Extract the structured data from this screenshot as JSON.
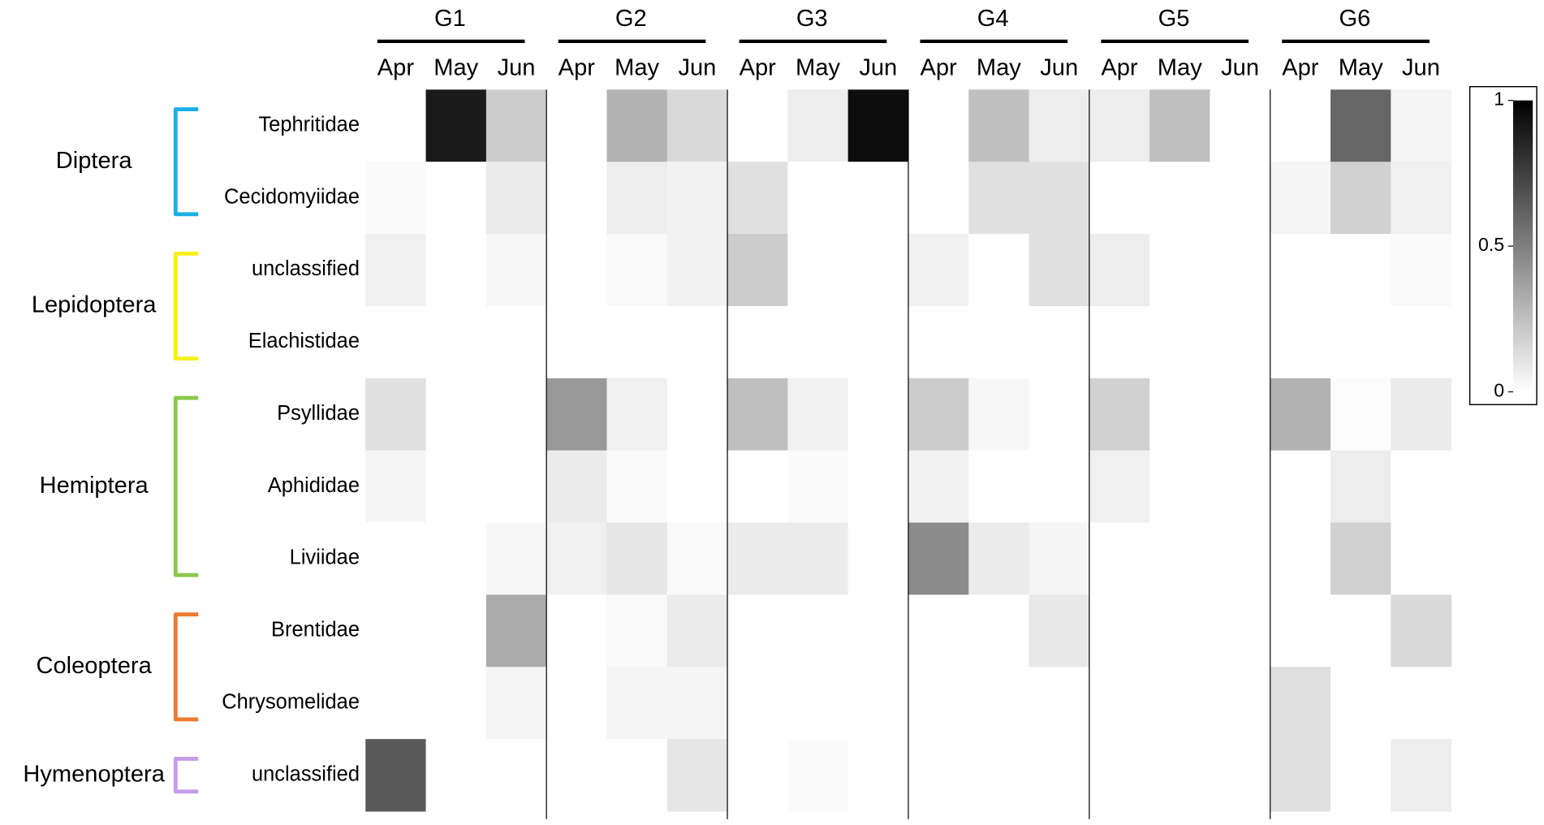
{
  "chart_data": {
    "type": "heatmap",
    "groups": [
      {
        "name": "G1",
        "months": [
          "Apr",
          "May",
          "Jun"
        ]
      },
      {
        "name": "G2",
        "months": [
          "Apr",
          "May",
          "Jun"
        ]
      },
      {
        "name": "G3",
        "months": [
          "Apr",
          "May",
          "Jun"
        ]
      },
      {
        "name": "G4",
        "months": [
          "Apr",
          "May",
          "Jun"
        ]
      },
      {
        "name": "G5",
        "months": [
          "Apr",
          "May",
          "Jun"
        ]
      },
      {
        "name": "G6",
        "months": [
          "Apr",
          "May",
          "Jun"
        ]
      }
    ],
    "orders": [
      {
        "name": "Diptera",
        "color": "#1aafe6",
        "families": [
          {
            "name": "Tephritidae",
            "values": [
              0,
              0.9,
              0.2,
              0,
              0.3,
              0.15,
              0,
              0.07,
              0.95,
              0,
              0.25,
              0.07,
              0.07,
              0.25,
              0,
              0,
              0.6,
              0.04
            ]
          },
          {
            "name": "Cecidomyiidae",
            "values": [
              0.02,
              0,
              0.08,
              0,
              0.07,
              0.05,
              0.12,
              0,
              0,
              0,
              0.12,
              0.12,
              0,
              0,
              0,
              0.04,
              0.18,
              0.06
            ]
          }
        ]
      },
      {
        "name": "Lepidoptera",
        "color": "#f5f019",
        "families": [
          {
            "name": "unclassified",
            "values": [
              0.06,
              0,
              0.03,
              0,
              0.02,
              0.05,
              0.2,
              0,
              0,
              0.06,
              0,
              0.12,
              0.07,
              0,
              0,
              0,
              0,
              0.02
            ]
          },
          {
            "name": "Elachistidae",
            "values": [
              0,
              0,
              0,
              0,
              0,
              0,
              0,
              0,
              0,
              0,
              0,
              0,
              0,
              0,
              0,
              0,
              0,
              0
            ]
          }
        ]
      },
      {
        "name": "Hemiptera",
        "color": "#8cc84b",
        "families": [
          {
            "name": "Psyllidae",
            "values": [
              0.12,
              0,
              0,
              0.4,
              0.06,
              0,
              0.25,
              0.05,
              0,
              0.2,
              0.03,
              0,
              0.18,
              0,
              0,
              0.3,
              0.01,
              0.08
            ]
          },
          {
            "name": "Aphididae",
            "values": [
              0.04,
              0,
              0,
              0.08,
              0.02,
              0,
              0,
              0.02,
              0,
              0.05,
              0,
              0,
              0.06,
              0,
              0,
              0,
              0.07,
              0
            ]
          },
          {
            "name": "Liviidae",
            "values": [
              0,
              0,
              0.03,
              0.06,
              0.1,
              0.02,
              0.08,
              0.08,
              0,
              0.45,
              0.08,
              0.04,
              0,
              0,
              0,
              0,
              0.18,
              0
            ]
          }
        ]
      },
      {
        "name": "Coleoptera",
        "color": "#ec7a30",
        "families": [
          {
            "name": "Brentidae",
            "values": [
              0,
              0,
              0.33,
              0,
              0.02,
              0.08,
              0,
              0,
              0,
              0,
              0,
              0.09,
              0,
              0,
              0,
              0,
              0,
              0.15
            ]
          },
          {
            "name": "Chrysomelidae",
            "values": [
              0,
              0,
              0.04,
              0,
              0.04,
              0.04,
              0,
              0,
              0,
              0,
              0,
              0,
              0,
              0,
              0,
              0.12,
              0,
              0
            ]
          }
        ]
      },
      {
        "name": "Hymenoptera",
        "color": "#c79be8",
        "families": [
          {
            "name": "unclassified",
            "values": [
              0.65,
              0,
              0,
              0,
              0,
              0.1,
              0,
              0.02,
              0,
              0,
              0,
              0,
              0,
              0,
              0,
              0.12,
              0,
              0.07
            ]
          }
        ]
      }
    ],
    "zlim": [
      0,
      1
    ],
    "zticks": [
      0,
      0.5,
      1
    ],
    "colors": [
      "#ffffff",
      "#000000"
    ]
  }
}
